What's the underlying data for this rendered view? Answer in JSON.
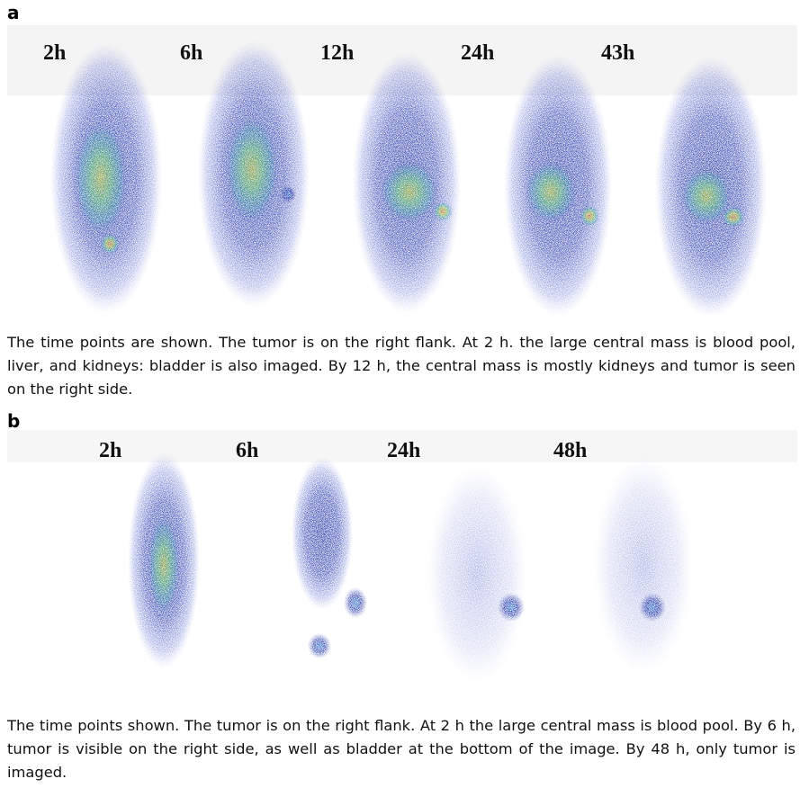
{
  "panels": [
    {
      "label": "a",
      "time_labels": [
        "2h",
        "6h",
        "12h",
        "24h",
        "43h"
      ],
      "caption": "The time points are shown. The tumor is on the right flank. At 2 h. the large central mass is blood pool, liver, and kidneys:  bladder is also imaged. By 12 h, the central mass is mostly kidneys and tumor is seen on the right side."
    },
    {
      "label": "b",
      "time_labels": [
        "2h",
        "6h",
        "24h",
        "48h"
      ],
      "caption": "The time points shown. The tumor is on the right flank. At 2 h the large central mass is blood pool. By 6 h, tumor is visible on the right side, as well as bladder at the bottom of the image. By 48 h, only tumor is imaged."
    }
  ]
}
